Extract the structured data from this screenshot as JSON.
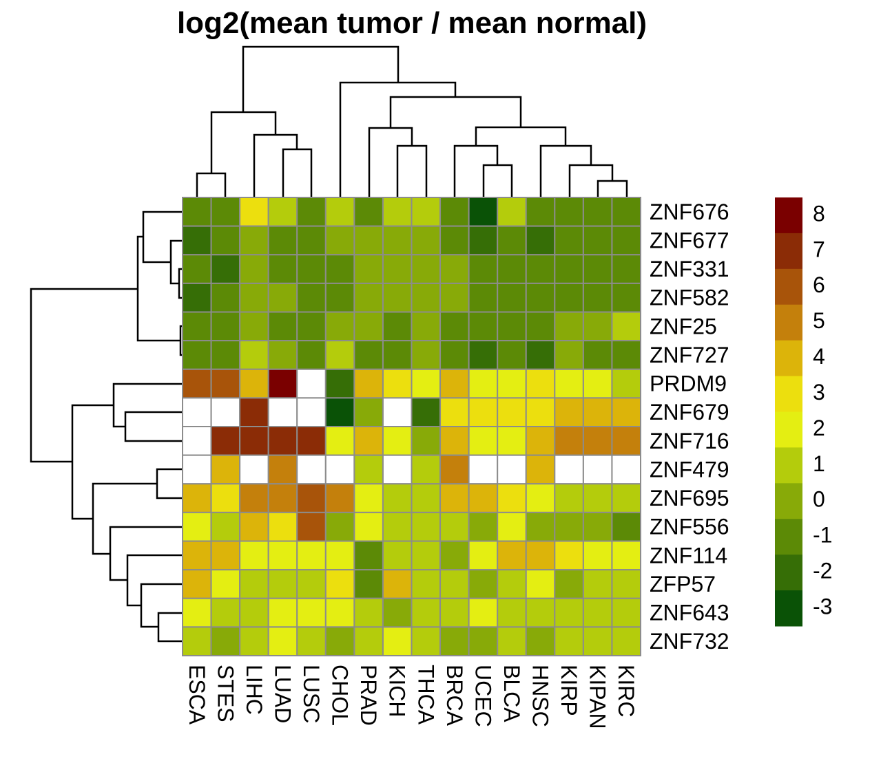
{
  "chart_data": {
    "type": "heatmap",
    "title": "log2(mean tumor / mean normal)",
    "columns": [
      "ESCA",
      "STES",
      "LIHC",
      "LUAD",
      "LUSC",
      "CHOL",
      "PRAD",
      "KICH",
      "THCA",
      "BRCA",
      "UCEC",
      "BLCA",
      "HNSC",
      "KIRP",
      "KIPAN",
      "KIRC"
    ],
    "rows": [
      "ZNF676",
      "ZNF677",
      "ZNF331",
      "ZNF582",
      "ZNF25",
      "ZNF727",
      "PRDM9",
      "ZNF679",
      "ZNF716",
      "ZNF479",
      "ZNF695",
      "ZNF556",
      "ZNF114",
      "ZFP57",
      "ZNF643",
      "ZNF732"
    ],
    "values": [
      [
        -1,
        -1,
        3,
        1,
        -1,
        1,
        -1,
        1,
        1,
        -1,
        -3,
        1,
        -1,
        -1,
        -1,
        -1
      ],
      [
        -2,
        -1,
        0,
        -1,
        -1,
        0,
        0,
        0,
        0,
        -1,
        -2,
        -1,
        -2,
        -1,
        -1,
        -1
      ],
      [
        -1,
        -2,
        0,
        -1,
        -1,
        -1,
        0,
        0,
        0,
        0,
        -1,
        -1,
        -1,
        -1,
        -1,
        -1
      ],
      [
        -2,
        -1,
        0,
        0,
        -1,
        -1,
        0,
        0,
        0,
        0,
        -1,
        -1,
        -1,
        -1,
        -1,
        -1
      ],
      [
        -1,
        -1,
        0,
        -1,
        -1,
        0,
        0,
        -1,
        0,
        -1,
        -1,
        -1,
        -1,
        0,
        0,
        1
      ],
      [
        -1,
        -1,
        1,
        0,
        -1,
        1,
        -1,
        -1,
        0,
        -1,
        -2,
        -1,
        -2,
        0,
        -1,
        -1
      ],
      [
        6,
        6,
        4,
        8,
        null,
        -2,
        4,
        3,
        2,
        4,
        2,
        2,
        3,
        2,
        2,
        1
      ],
      [
        null,
        null,
        7,
        null,
        null,
        -3,
        0,
        null,
        -2,
        3,
        3,
        3,
        3,
        4,
        4,
        4
      ],
      [
        null,
        7,
        7,
        7,
        7,
        2,
        4,
        2,
        0,
        4,
        2,
        2,
        4,
        5,
        5,
        5
      ],
      [
        null,
        4,
        null,
        5,
        null,
        null,
        1,
        null,
        1,
        5,
        null,
        null,
        4,
        null,
        null,
        null
      ],
      [
        4,
        3,
        5,
        5,
        6,
        5,
        2,
        1,
        1,
        4,
        4,
        3,
        2,
        1,
        1,
        1
      ],
      [
        2,
        1,
        4,
        3,
        6,
        0,
        2,
        1,
        1,
        1,
        0,
        2,
        0,
        0,
        0,
        -1
      ],
      [
        4,
        4,
        2,
        2,
        2,
        2,
        -1,
        1,
        1,
        0,
        2,
        4,
        4,
        3,
        2,
        2
      ],
      [
        4,
        2,
        1,
        1,
        1,
        3,
        -1,
        4,
        1,
        1,
        0,
        1,
        2,
        0,
        1,
        1
      ],
      [
        2,
        1,
        1,
        2,
        2,
        2,
        1,
        0,
        1,
        1,
        2,
        1,
        1,
        1,
        1,
        1
      ],
      [
        1,
        0,
        1,
        2,
        1,
        0,
        1,
        2,
        1,
        0,
        0,
        1,
        0,
        1,
        1,
        1
      ]
    ],
    "legend_ticks": [
      8,
      7,
      6,
      5,
      4,
      3,
      2,
      1,
      0,
      -1,
      -2,
      -3
    ],
    "legend_colors": [
      "#7a0000",
      "#8b2c06",
      "#a8540a",
      "#c4800c",
      "#dcb40a",
      "#ecdf0e",
      "#e4ee12",
      "#b4cc0c",
      "#88aa08",
      "#5c8a06",
      "#366e06",
      "#0a5206"
    ]
  }
}
